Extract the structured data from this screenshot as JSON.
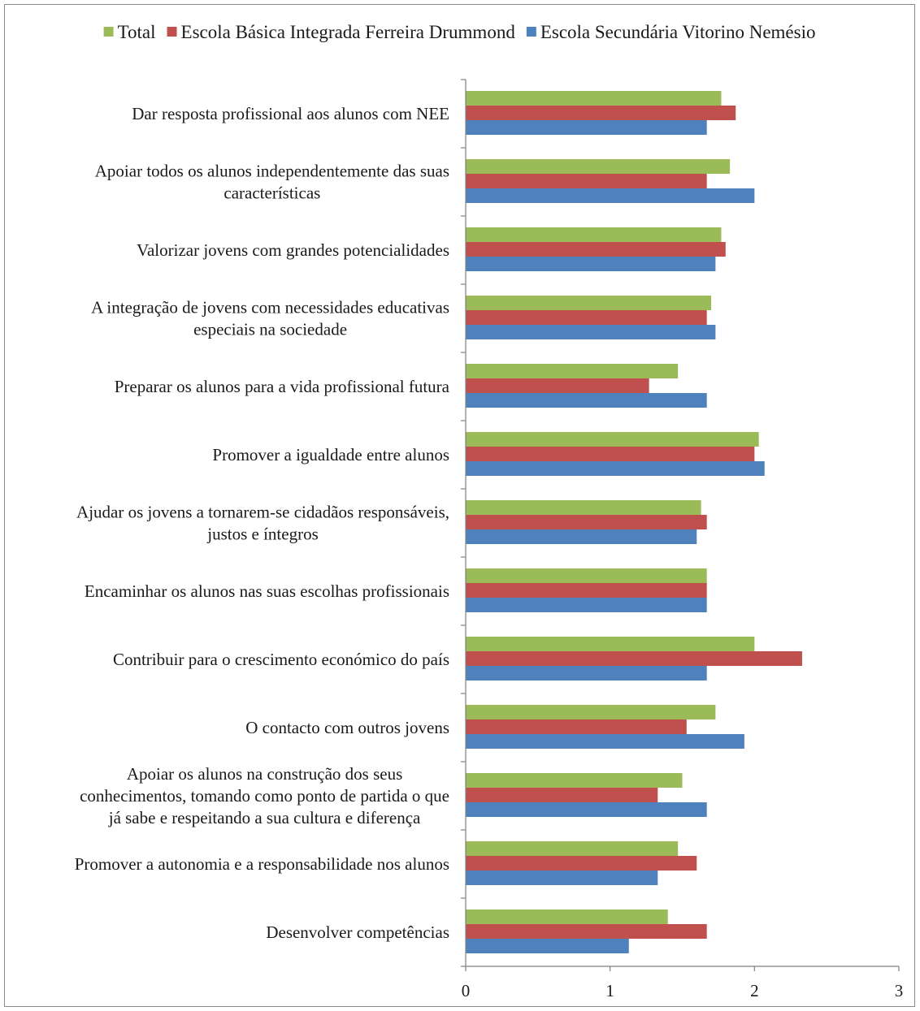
{
  "chart_data": {
    "type": "bar",
    "orientation": "horizontal",
    "categories": [
      "Dar resposta profissional aos alunos com NEE",
      "Apoiar todos os alunos independentemente das suas características",
      "Valorizar jovens com grandes potencialidades",
      "A integração de jovens com necessidades educativas especiais na sociedade",
      "Preparar os alunos para a vida profissional futura",
      "Promover a igualdade entre alunos",
      "Ajudar os jovens a tornarem-se cidadãos responsáveis, justos e íntegros",
      "Encaminhar os alunos nas suas escolhas profissionais",
      "Contribuir para o crescimento económico do país",
      "O contacto com outros jovens",
      "Apoiar os alunos na construção dos seus conhecimentos, tomando como ponto de partida o que já sabe e respeitando a sua cultura e diferença",
      "Promover a autonomia e a responsabilidade nos alunos",
      "Desenvolver competências"
    ],
    "category_lines": [
      [
        "Dar resposta profissional aos alunos com NEE"
      ],
      [
        "Apoiar todos os alunos independentemente das suas",
        "características"
      ],
      [
        "Valorizar jovens com grandes potencialidades"
      ],
      [
        "A integração de jovens com necessidades educativas",
        "especiais na sociedade"
      ],
      [
        "Preparar os alunos para a vida profissional futura"
      ],
      [
        "Promover a igualdade entre alunos"
      ],
      [
        "Ajudar os jovens a tornarem-se cidadãos responsáveis,",
        "justos e íntegros"
      ],
      [
        "Encaminhar os alunos nas suas escolhas profissionais"
      ],
      [
        "Contribuir para o crescimento económico do país"
      ],
      [
        "O contacto com outros jovens"
      ],
      [
        "Apoiar os alunos na construção dos seus",
        "conhecimentos, tomando como ponto de partida o que",
        "já sabe e respeitando a sua cultura e diferença"
      ],
      [
        "Promover a autonomia e a responsabilidade nos alunos"
      ],
      [
        "Desenvolver competências"
      ]
    ],
    "series": [
      {
        "name": "Total",
        "color": "#9bbb59",
        "values": [
          1.77,
          1.83,
          1.77,
          1.7,
          1.47,
          2.03,
          1.63,
          1.67,
          2.0,
          1.73,
          1.5,
          1.47,
          1.4
        ]
      },
      {
        "name": "Escola Básica Integrada Ferreira Drummond",
        "color": "#c0504d",
        "values": [
          1.87,
          1.67,
          1.8,
          1.67,
          1.27,
          2.0,
          1.67,
          1.67,
          2.33,
          1.53,
          1.33,
          1.6,
          1.67
        ]
      },
      {
        "name": "Escola Secundária Vitorino Nemésio",
        "color": "#4f81bd",
        "values": [
          1.67,
          2.0,
          1.73,
          1.73,
          1.67,
          2.07,
          1.6,
          1.67,
          1.67,
          1.93,
          1.67,
          1.33,
          1.13
        ]
      }
    ],
    "xlim": [
      0,
      3
    ],
    "xticks": [
      "0",
      "1",
      "2",
      "3"
    ],
    "title": "",
    "xlabel": "",
    "ylabel": "",
    "legend_position": "top",
    "grid": false
  }
}
